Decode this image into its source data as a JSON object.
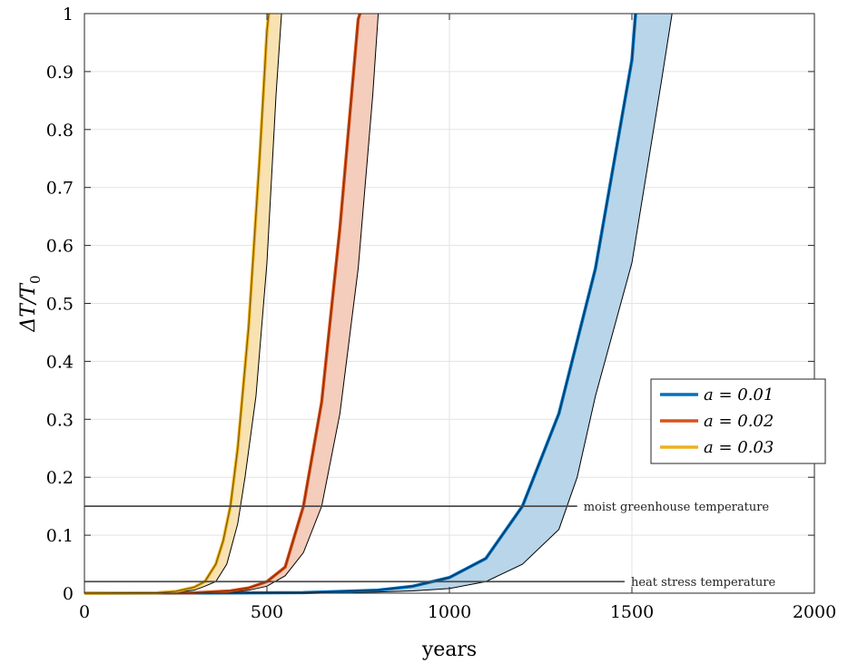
{
  "chart_data": {
    "type": "area",
    "xlabel": "years",
    "ylabel_main": "ΔT/T",
    "ylabel_sub": "0",
    "xlim": [
      0,
      2000
    ],
    "ylim": [
      0,
      1
    ],
    "xticks": [
      "0",
      "500",
      "1000",
      "1500",
      "2000"
    ],
    "xtick_values": [
      0,
      500,
      1000,
      1500,
      2000
    ],
    "yticks": [
      "0",
      "0.1",
      "0.2",
      "0.3",
      "0.4",
      "0.5",
      "0.6",
      "0.7",
      "0.8",
      "0.9",
      "1"
    ],
    "ytick_values": [
      0,
      0.1,
      0.2,
      0.3,
      0.4,
      0.5,
      0.6,
      0.7,
      0.8,
      0.9,
      1
    ],
    "grid": true,
    "legend_position": "right",
    "series": [
      {
        "name": "a = 0.01",
        "legend_label": "a = 0.01",
        "color": "#0072BD",
        "edge_color": "#00335e",
        "fill": "#b8d5ea",
        "x": [
          0,
          400,
          600,
          800,
          900,
          1000,
          1100,
          1200,
          1300,
          1400,
          1500,
          1510
        ],
        "y_upper": [
          0,
          0.0004,
          0.001,
          0.005,
          0.012,
          0.027,
          0.06,
          0.15,
          0.31,
          0.56,
          0.92,
          1
        ],
        "y_lower": [
          0,
          0.0001,
          0.0004,
          0.002,
          0.004,
          0.008,
          0.02,
          0.05,
          0.11,
          0.2,
          0.34,
          0.57,
          0.88,
          1
        ],
        "x_lower": [
          0,
          400,
          600,
          800,
          900,
          1000,
          1100,
          1200,
          1300,
          1350,
          1400,
          1500,
          1580,
          1610
        ]
      },
      {
        "name": "a = 0.02",
        "legend_label": "a = 0.02",
        "color": "#D95319",
        "edge_color": "#8a2a08",
        "fill": "#f4cdbc",
        "x": [
          0,
          300,
          400,
          450,
          500,
          550,
          600,
          650,
          700,
          750,
          755
        ],
        "y_upper": [
          0,
          0.0005,
          0.004,
          0.009,
          0.02,
          0.045,
          0.15,
          0.33,
          0.63,
          0.99,
          1
        ],
        "y_lower": [
          0,
          0.0002,
          0.002,
          0.005,
          0.012,
          0.03,
          0.07,
          0.15,
          0.31,
          0.56,
          0.86,
          1
        ],
        "x_lower": [
          0,
          300,
          400,
          450,
          500,
          550,
          600,
          650,
          700,
          750,
          790,
          805
        ]
      },
      {
        "name": "a = 0.03",
        "legend_label": "a = 0.03",
        "color": "#EDB120",
        "edge_color": "#7a5a00",
        "fill": "#f9e2b1",
        "x": [
          0,
          200,
          250,
          300,
          330,
          360,
          380,
          400,
          420,
          450,
          480,
          500,
          505
        ],
        "y_upper": [
          0,
          0.0008,
          0.003,
          0.01,
          0.02,
          0.05,
          0.09,
          0.15,
          0.25,
          0.46,
          0.75,
          0.97,
          1
        ],
        "y_lower": [
          0,
          0.0005,
          0.002,
          0.005,
          0.012,
          0.02,
          0.05,
          0.12,
          0.2,
          0.34,
          0.57,
          0.86,
          1
        ],
        "x_lower": [
          0,
          200,
          250,
          300,
          330,
          360,
          390,
          420,
          440,
          470,
          500,
          525,
          540
        ]
      }
    ],
    "reference_lines": [
      {
        "y": 0.15,
        "x_end": 1350,
        "label": "moist greenhouse temperature"
      },
      {
        "y": 0.02,
        "x_end": 1480,
        "label": "heat stress temperature"
      }
    ]
  }
}
